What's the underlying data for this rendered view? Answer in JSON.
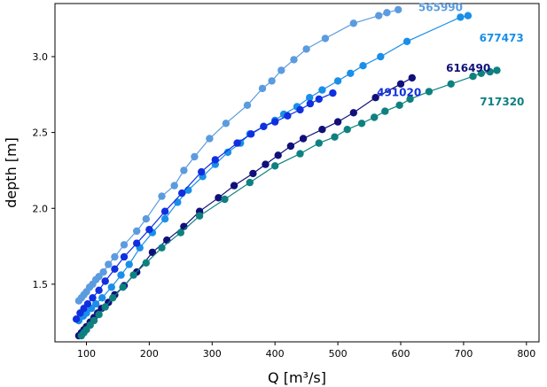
{
  "chart_data": {
    "type": "line",
    "xlabel": "Q [m³/s]",
    "ylabel": "depth [m]",
    "xlim": [
      50,
      820
    ],
    "ylim": [
      1.12,
      3.35
    ],
    "xticks": [
      100,
      200,
      300,
      400,
      500,
      600,
      700,
      800
    ],
    "yticks": [
      1.5,
      2.0,
      2.5,
      3.0
    ],
    "xtick_labels": [
      "100",
      "200",
      "300",
      "400",
      "500",
      "600",
      "700",
      "800"
    ],
    "ytick_labels": [
      "1.5",
      "2.0",
      "2.5",
      "3.0"
    ],
    "legend": "inline labels at line ends",
    "series": [
      {
        "name": "565990",
        "color": "#5b9bdf",
        "points": [
          [
            88,
            1.39
          ],
          [
            92,
            1.41
          ],
          [
            96,
            1.43
          ],
          [
            100,
            1.45
          ],
          [
            105,
            1.48
          ],
          [
            110,
            1.5
          ],
          [
            115,
            1.53
          ],
          [
            120,
            1.55
          ],
          [
            127,
            1.58
          ],
          [
            135,
            1.63
          ],
          [
            145,
            1.68
          ],
          [
            160,
            1.76
          ],
          [
            180,
            1.85
          ],
          [
            195,
            1.93
          ],
          [
            220,
            2.08
          ],
          [
            240,
            2.15
          ],
          [
            255,
            2.25
          ],
          [
            272,
            2.34
          ],
          [
            296,
            2.46
          ],
          [
            322,
            2.56
          ],
          [
            356,
            2.68
          ],
          [
            380,
            2.79
          ],
          [
            395,
            2.84
          ],
          [
            410,
            2.91
          ],
          [
            430,
            2.98
          ],
          [
            450,
            3.05
          ],
          [
            480,
            3.12
          ],
          [
            525,
            3.22
          ],
          [
            565,
            3.27
          ],
          [
            578,
            3.29
          ],
          [
            596,
            3.31
          ]
        ]
      },
      {
        "name": "677473",
        "color": "#1a8fe8",
        "points": [
          [
            88,
            1.26
          ],
          [
            95,
            1.29
          ],
          [
            100,
            1.31
          ],
          [
            108,
            1.34
          ],
          [
            115,
            1.37
          ],
          [
            125,
            1.41
          ],
          [
            140,
            1.48
          ],
          [
            155,
            1.56
          ],
          [
            168,
            1.63
          ],
          [
            185,
            1.74
          ],
          [
            205,
            1.84
          ],
          [
            225,
            1.93
          ],
          [
            245,
            2.04
          ],
          [
            262,
            2.12
          ],
          [
            285,
            2.21
          ],
          [
            305,
            2.29
          ],
          [
            325,
            2.37
          ],
          [
            345,
            2.43
          ],
          [
            360,
            2.49
          ],
          [
            382,
            2.54
          ],
          [
            400,
            2.58
          ],
          [
            414,
            2.62
          ],
          [
            435,
            2.67
          ],
          [
            455,
            2.73
          ],
          [
            475,
            2.78
          ],
          [
            500,
            2.84
          ],
          [
            520,
            2.89
          ],
          [
            540,
            2.94
          ],
          [
            568,
            3.0
          ],
          [
            610,
            3.1
          ],
          [
            695,
            3.26
          ],
          [
            707,
            3.27
          ]
        ]
      },
      {
        "name": "616490",
        "color": "#10107a",
        "points": [
          [
            88,
            1.16
          ],
          [
            92,
            1.18
          ],
          [
            96,
            1.2
          ],
          [
            100,
            1.22
          ],
          [
            106,
            1.25
          ],
          [
            112,
            1.28
          ],
          [
            118,
            1.31
          ],
          [
            124,
            1.34
          ],
          [
            135,
            1.38
          ],
          [
            145,
            1.43
          ],
          [
            160,
            1.49
          ],
          [
            180,
            1.58
          ],
          [
            205,
            1.71
          ],
          [
            228,
            1.79
          ],
          [
            255,
            1.88
          ],
          [
            280,
            1.98
          ],
          [
            310,
            2.07
          ],
          [
            335,
            2.15
          ],
          [
            365,
            2.23
          ],
          [
            385,
            2.29
          ],
          [
            405,
            2.35
          ],
          [
            425,
            2.41
          ],
          [
            445,
            2.46
          ],
          [
            475,
            2.52
          ],
          [
            500,
            2.57
          ],
          [
            525,
            2.63
          ],
          [
            560,
            2.73
          ],
          [
            600,
            2.82
          ],
          [
            618,
            2.86
          ]
        ]
      },
      {
        "name": "491020",
        "color": "#1030e0",
        "points": [
          [
            84,
            1.27
          ],
          [
            90,
            1.31
          ],
          [
            96,
            1.34
          ],
          [
            102,
            1.37
          ],
          [
            110,
            1.41
          ],
          [
            120,
            1.46
          ],
          [
            130,
            1.52
          ],
          [
            145,
            1.6
          ],
          [
            160,
            1.68
          ],
          [
            180,
            1.77
          ],
          [
            200,
            1.86
          ],
          [
            225,
            1.98
          ],
          [
            252,
            2.1
          ],
          [
            283,
            2.24
          ],
          [
            305,
            2.32
          ],
          [
            340,
            2.43
          ],
          [
            362,
            2.49
          ],
          [
            382,
            2.54
          ],
          [
            400,
            2.57
          ],
          [
            420,
            2.61
          ],
          [
            440,
            2.65
          ],
          [
            456,
            2.69
          ],
          [
            470,
            2.72
          ],
          [
            492,
            2.76
          ]
        ]
      },
      {
        "name": "717320",
        "color": "#0f8080",
        "points": [
          [
            92,
            1.16
          ],
          [
            96,
            1.18
          ],
          [
            100,
            1.2
          ],
          [
            106,
            1.23
          ],
          [
            112,
            1.26
          ],
          [
            120,
            1.3
          ],
          [
            130,
            1.35
          ],
          [
            142,
            1.41
          ],
          [
            158,
            1.48
          ],
          [
            175,
            1.56
          ],
          [
            195,
            1.64
          ],
          [
            220,
            1.74
          ],
          [
            250,
            1.84
          ],
          [
            280,
            1.95
          ],
          [
            320,
            2.06
          ],
          [
            360,
            2.17
          ],
          [
            400,
            2.28
          ],
          [
            440,
            2.36
          ],
          [
            470,
            2.43
          ],
          [
            495,
            2.47
          ],
          [
            515,
            2.52
          ],
          [
            538,
            2.56
          ],
          [
            558,
            2.6
          ],
          [
            575,
            2.64
          ],
          [
            598,
            2.68
          ],
          [
            615,
            2.72
          ],
          [
            645,
            2.77
          ],
          [
            680,
            2.82
          ],
          [
            715,
            2.87
          ],
          [
            728,
            2.89
          ],
          [
            742,
            2.9
          ],
          [
            753,
            2.91
          ]
        ]
      }
    ],
    "series_labels": [
      {
        "name": "565990",
        "anchor": [
          628,
          3.3
        ]
      },
      {
        "name": "677473",
        "anchor": [
          725,
          3.1
        ]
      },
      {
        "name": "616490",
        "anchor": [
          672,
          2.9
        ]
      },
      {
        "name": "491020",
        "anchor": [
          562,
          2.74
        ]
      },
      {
        "name": "717320",
        "anchor": [
          726,
          2.68
        ]
      }
    ]
  }
}
